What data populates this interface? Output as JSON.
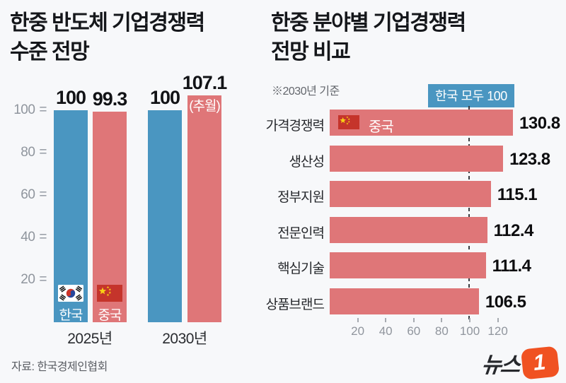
{
  "colors": {
    "background": "#f7f8fa",
    "korea_blue": "#4a96c1",
    "china_red": "#df7678",
    "flag_red": "#c5342b",
    "star_yellow": "#f8d014",
    "taeguk_red": "#cd3329",
    "taeguk_blue": "#27479c",
    "logo_orange": "#f05222",
    "title_text": "#15171b",
    "axis_gray": "#8f959d"
  },
  "left_chart": {
    "title_line1": "한중 반도체 기업경쟁력",
    "title_line2": "수준 전망",
    "y_ticks": [
      "100",
      "80",
      "60",
      "40",
      "20"
    ],
    "groups": [
      {
        "label": "2025년",
        "bars": [
          {
            "name": "한국",
            "value": 100,
            "value_label": "100",
            "color": "blue",
            "flag": "kr",
            "flag_label": "한국"
          },
          {
            "name": "중국",
            "value": 99.3,
            "value_label": "99.3",
            "color": "red",
            "flag": "cn",
            "flag_label": "중국"
          }
        ]
      },
      {
        "label": "2030년",
        "bars": [
          {
            "name": "한국",
            "value": 100,
            "value_label": "100",
            "color": "blue"
          },
          {
            "name": "중국",
            "value": 107.1,
            "value_label": "107.1",
            "color": "red",
            "annotation": "(추월)"
          }
        ]
      }
    ]
  },
  "right_chart": {
    "title_line1": "한중 분야별 기업경쟁력",
    "title_line2": "전망 비교",
    "subtitle": "※2030년 기준",
    "badge_label": "한국 모두 100",
    "series_label": "중국",
    "rows": [
      {
        "label": "가격경쟁력",
        "value": 130.8,
        "value_label": "130.8"
      },
      {
        "label": "생산성",
        "value": 123.8,
        "value_label": "123.8"
      },
      {
        "label": "정부지원",
        "value": 115.1,
        "value_label": "115.1"
      },
      {
        "label": "전문인력",
        "value": 112.4,
        "value_label": "112.4"
      },
      {
        "label": "핵심기술",
        "value": 111.4,
        "value_label": "111.4"
      },
      {
        "label": "상품브랜드",
        "value": 106.5,
        "value_label": "106.5"
      }
    ],
    "x_ticks": [
      "20",
      "40",
      "60",
      "80",
      "100",
      "120"
    ]
  },
  "footer": {
    "source": "자료: 한국경제인협회",
    "logo_text": "뉴스",
    "logo_numeral": "1"
  },
  "chart_data": [
    {
      "type": "bar",
      "title": "한중 반도체 기업경쟁력 수준 전망",
      "categories": [
        "2025년",
        "2030년"
      ],
      "series": [
        {
          "name": "한국",
          "values": [
            100,
            100
          ],
          "color": "#4a96c1"
        },
        {
          "name": "중국",
          "values": [
            99.3,
            107.1
          ],
          "color": "#df7678"
        }
      ],
      "annotations": [
        {
          "series": "중국",
          "category": "2030년",
          "text": "(추월)"
        }
      ],
      "xlabel": "",
      "ylabel": "",
      "ylim": [
        0,
        110
      ],
      "yticks": [
        20,
        40,
        60,
        80,
        100
      ],
      "grid": false,
      "legend_position": "inside-bars"
    },
    {
      "type": "bar",
      "orientation": "horizontal",
      "title": "한중 분야별 기업경쟁력 전망 비교",
      "subtitle": "※2030년 기준",
      "note": "한국 모두 100",
      "reference_line": 100,
      "series_name": "중국",
      "categories": [
        "가격경쟁력",
        "생산성",
        "정부지원",
        "전문인력",
        "핵심기술",
        "상품브랜드"
      ],
      "values": [
        130.8,
        123.8,
        115.1,
        112.4,
        111.4,
        106.5
      ],
      "xlim": [
        0,
        135
      ],
      "xticks": [
        20,
        40,
        60,
        80,
        100,
        120
      ],
      "grid": false
    }
  ]
}
